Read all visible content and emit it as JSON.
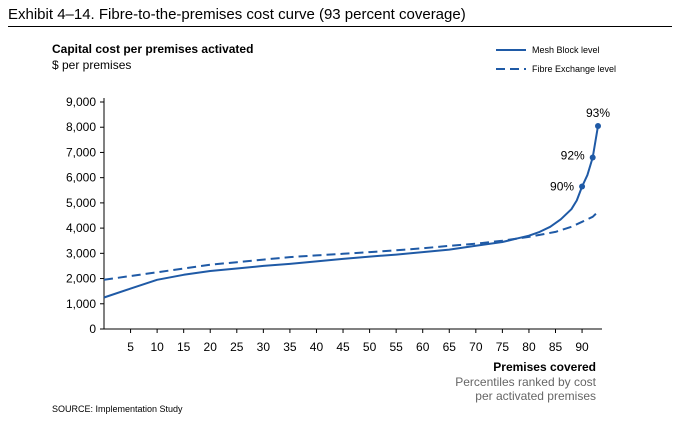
{
  "exhibit_title": "Exhibit 4–14. Fibre-to-the-premises cost curve (93 percent coverage)",
  "source": "SOURCE: Implementation Study",
  "colors": {
    "series": "#1f5aa6",
    "axis": "#000000",
    "muted": "#666666"
  },
  "chart_data": {
    "type": "line",
    "title": "",
    "ylabel": "Capital cost per premises activated",
    "yunit": "$ per premises",
    "xlabel": "Premises covered",
    "xsublabel": [
      "Percentiles ranked by cost",
      "per activated premises"
    ],
    "xlim": [
      0,
      93
    ],
    "ylim": [
      0,
      9000
    ],
    "yticks": [
      0,
      1000,
      2000,
      3000,
      4000,
      5000,
      6000,
      7000,
      8000,
      9000
    ],
    "ytick_labels": [
      "0",
      "1,000",
      "2,000",
      "3,000",
      "4,000",
      "5,000",
      "6,000",
      "7,000",
      "8,000",
      "9,000"
    ],
    "xticks": [
      5,
      10,
      15,
      20,
      25,
      30,
      35,
      40,
      45,
      50,
      55,
      60,
      65,
      70,
      75,
      80,
      85,
      90
    ],
    "xtick_labels": [
      "5",
      "10",
      "15",
      "20",
      "25",
      "30",
      "35",
      "40",
      "45",
      "50",
      "55",
      "60",
      "65",
      "70",
      "75",
      "80",
      "85",
      "90"
    ],
    "legend_position": "top-right",
    "series": [
      {
        "name": "Mesh Block level",
        "style": "solid",
        "x": [
          0,
          5,
          10,
          15,
          20,
          25,
          30,
          35,
          40,
          45,
          50,
          55,
          60,
          65,
          70,
          75,
          78,
          80,
          82,
          84,
          86,
          88,
          89,
          90,
          91,
          92,
          93
        ],
        "y": [
          1250,
          1600,
          1950,
          2150,
          2300,
          2400,
          2500,
          2580,
          2680,
          2780,
          2870,
          2950,
          3050,
          3150,
          3300,
          3450,
          3600,
          3700,
          3850,
          4050,
          4350,
          4750,
          5100,
          5650,
          6100,
          6800,
          8050
        ]
      },
      {
        "name": "Fibre Exchange level",
        "style": "dashed",
        "x": [
          0,
          5,
          10,
          15,
          20,
          25,
          30,
          35,
          40,
          45,
          50,
          55,
          60,
          65,
          70,
          75,
          80,
          85,
          88,
          90,
          92,
          93
        ],
        "y": [
          1950,
          2100,
          2250,
          2400,
          2550,
          2650,
          2750,
          2850,
          2920,
          2980,
          3050,
          3120,
          3200,
          3300,
          3380,
          3500,
          3650,
          3850,
          4050,
          4250,
          4450,
          4650
        ]
      }
    ],
    "annotations": [
      {
        "label": "90%",
        "x": 90,
        "y": 5650
      },
      {
        "label": "92%",
        "x": 92,
        "y": 6800
      },
      {
        "label": "93%",
        "x": 93,
        "y": 8050
      }
    ]
  }
}
